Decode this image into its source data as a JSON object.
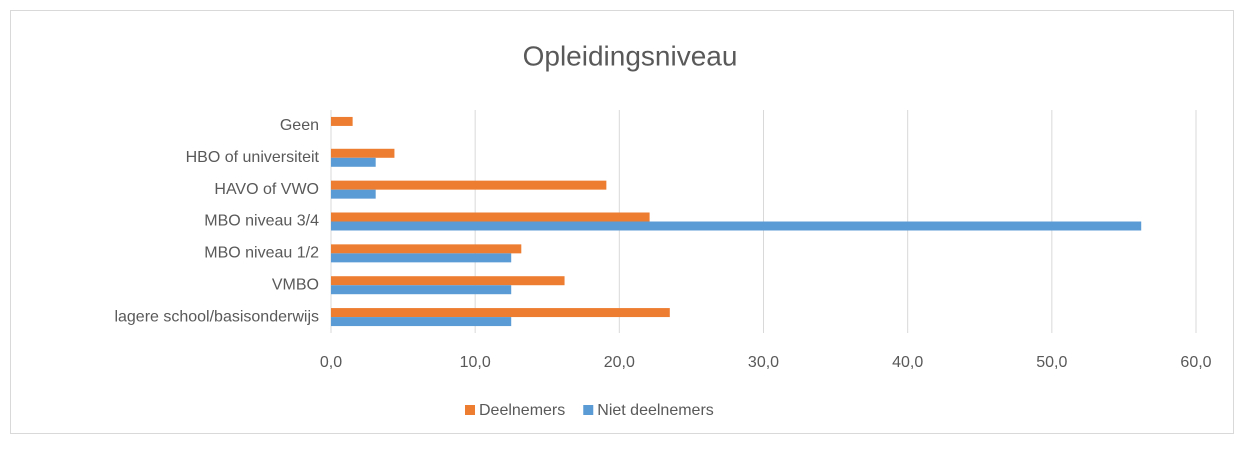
{
  "chart_data": {
    "type": "bar",
    "orientation": "horizontal",
    "title": "Opleidingsniveau",
    "categories": [
      "Geen",
      "HBO of universiteit",
      "HAVO of VWO",
      "MBO niveau 3/4",
      "MBO niveau 1/2",
      "VMBO",
      "lagere school/basisonderwijs"
    ],
    "series": [
      {
        "name": "Deelnemers",
        "color": "#ed7d31",
        "values": [
          1.5,
          4.4,
          19.1,
          22.1,
          13.2,
          16.2,
          23.5
        ]
      },
      {
        "name": "Niet deelnemers",
        "color": "#5b9bd5",
        "values": [
          0,
          3.1,
          3.1,
          56.2,
          12.5,
          12.5,
          12.5
        ]
      }
    ],
    "xlim": [
      0,
      60
    ],
    "xticks": [
      {
        "value": 0,
        "label": "0,0"
      },
      {
        "value": 10,
        "label": "10,0"
      },
      {
        "value": 20,
        "label": "20,0"
      },
      {
        "value": 30,
        "label": "30,0"
      },
      {
        "value": 40,
        "label": "40,0"
      },
      {
        "value": 50,
        "label": "50,0"
      },
      {
        "value": 60,
        "label": "60,0"
      }
    ],
    "grid": true,
    "legend": "bottom"
  }
}
